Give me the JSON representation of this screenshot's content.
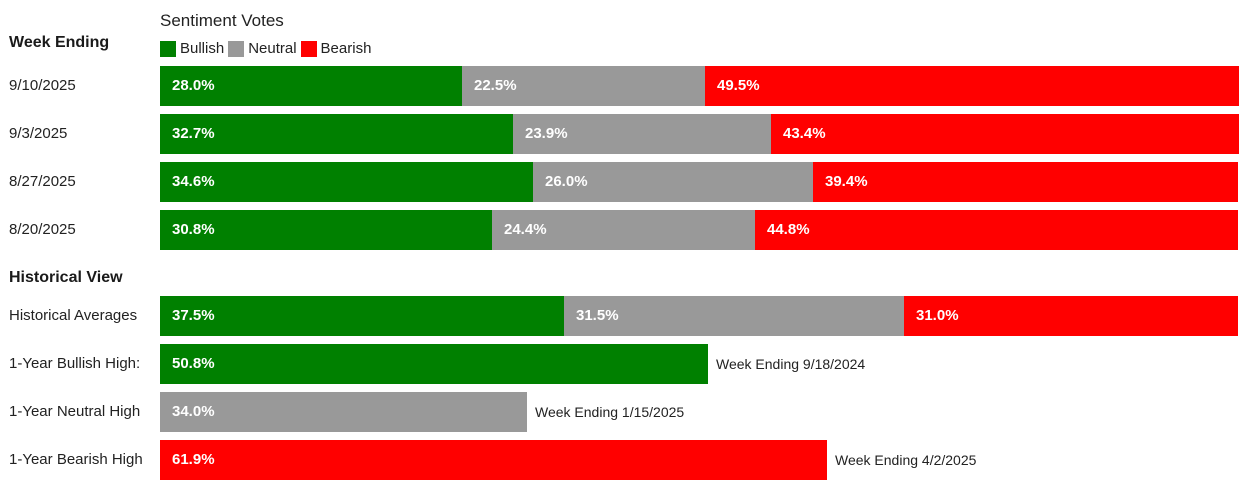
{
  "chart_data": {
    "type": "bar",
    "legend_title": "Sentiment Votes",
    "legend_placement": "top-left",
    "colors": {
      "Bullish": "#008000",
      "Neutral": "#999999",
      "Bearish": "#ff0000"
    },
    "weekly": {
      "header": "Week Ending",
      "rows": [
        {
          "label": "9/10/2025",
          "values": {
            "Bullish": 28.0,
            "Neutral": 22.5,
            "Bearish": 49.5
          }
        },
        {
          "label": "9/3/2025",
          "values": {
            "Bullish": 32.7,
            "Neutral": 23.9,
            "Bearish": 43.4
          }
        },
        {
          "label": "8/27/2025",
          "values": {
            "Bullish": 34.6,
            "Neutral": 26.0,
            "Bearish": 39.4
          }
        },
        {
          "label": "8/20/2025",
          "values": {
            "Bullish": 30.8,
            "Neutral": 24.4,
            "Bearish": 44.8
          }
        }
      ]
    },
    "historical": {
      "header": "Historical View",
      "rows": [
        {
          "label": "Historical Averages",
          "values": {
            "Bullish": 37.5,
            "Neutral": 31.5,
            "Bearish": 31.0
          },
          "note": ""
        },
        {
          "label": "1-Year Bullish High:",
          "values": {
            "Bullish": 50.8
          },
          "note": "Week Ending 9/18/2024"
        },
        {
          "label": "1-Year Neutral High",
          "values": {
            "Neutral": 34.0
          },
          "note": "Week Ending 1/15/2025"
        },
        {
          "label": "1-Year Bearish High",
          "values": {
            "Bearish": 61.9
          },
          "note": "Week Ending 4/2/2025"
        }
      ]
    },
    "series": [
      {
        "name": "Bullish"
      },
      {
        "name": "Neutral"
      },
      {
        "name": "Bearish"
      }
    ],
    "xlim": [
      0,
      100
    ],
    "value_suffix": "%"
  }
}
